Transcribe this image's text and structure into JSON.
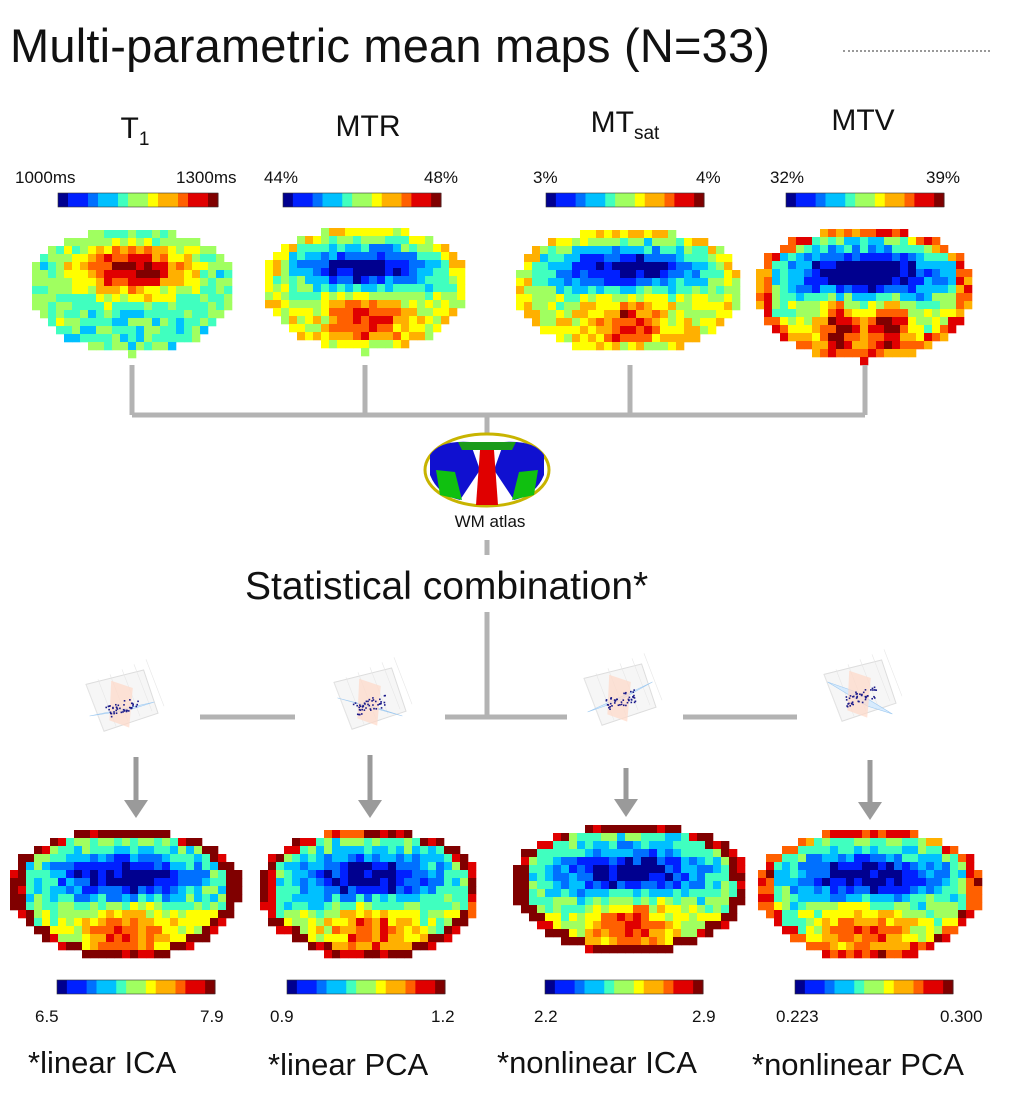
{
  "title": "Multi-parametric mean maps (N=33)",
  "top_maps": [
    {
      "name": "T",
      "sub": "1",
      "cb_min": "1000ms",
      "cb_max": "1300ms"
    },
    {
      "name": "MTR",
      "sub": "",
      "cb_min": "44%",
      "cb_max": "48%"
    },
    {
      "name": "MT",
      "sub": "sat",
      "cb_min": "3%",
      "cb_max": "4%"
    },
    {
      "name": "MTV",
      "sub": "",
      "cb_min": "32%",
      "cb_max": "39%"
    }
  ],
  "atlas_label": "WM atlas",
  "statistical_label": "Statistical combination*",
  "bottom_maps": [
    {
      "label": "*linear ICA",
      "cb_min": "6.5",
      "cb_max": "7.9"
    },
    {
      "label": "*linear PCA",
      "cb_min": "0.9",
      "cb_max": "1.2"
    },
    {
      "label": "*nonlinear ICA",
      "cb_min": "2.2",
      "cb_max": "2.9"
    },
    {
      "label": "*nonlinear PCA",
      "cb_min": "0.223",
      "cb_max": "0.300"
    }
  ],
  "colors": {
    "connector": "#b3b3b3",
    "arrow": "#9a9a9a",
    "jet": [
      "#00008f",
      "#0020ff",
      "#0070ff",
      "#00c0ff",
      "#40ffbf",
      "#a0ff60",
      "#ffff00",
      "#ffb000",
      "#ff6000",
      "#e00000",
      "#800000"
    ]
  }
}
